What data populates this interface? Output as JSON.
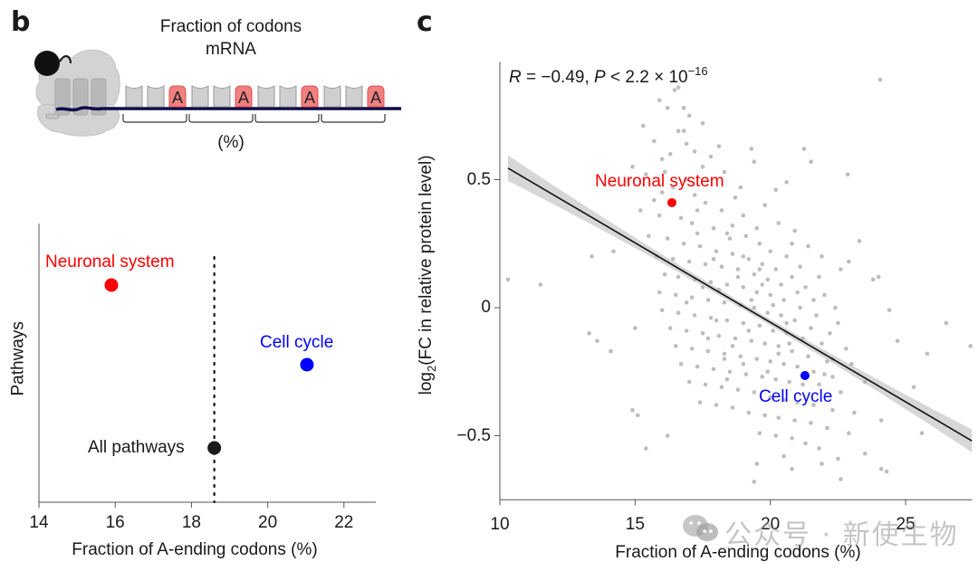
{
  "panels": {
    "b": {
      "letter": "b",
      "diagram": {
        "title_line1": "Fraction of codons",
        "title_line2": "mRNA",
        "percent_label": "(%)",
        "codon_groups": 4,
        "codon_letter": "A",
        "colors": {
          "codon_fill": "#cfcfcf",
          "a_codon_fill": "#f08080",
          "a_codon_stroke": "#e05050",
          "mrna": "#0c0c4a",
          "ribosome": "#d3d3d3",
          "peptide": "#111111"
        }
      }
    },
    "c": {
      "letter": "c"
    }
  },
  "watermark": {
    "text": "公众号 · 新使生物",
    "icon": "wechat-icon"
  },
  "chart_data": [
    {
      "type": "scatter",
      "id": "panel-b-dotplot",
      "title": "",
      "xlabel": "Fraction of A-ending codons (%)",
      "ylabel": "Pathways",
      "xlim": [
        14,
        22.9
      ],
      "xticks": [
        14,
        16,
        18,
        20,
        22
      ],
      "grid": false,
      "reference_line": {
        "x": 18.6,
        "style": "dotted"
      },
      "points": [
        {
          "label": "Neuronal system",
          "x": 15.9,
          "row": 3,
          "color": "#ff0000"
        },
        {
          "label": "Cell cycle",
          "x": 21.03,
          "row": 2,
          "color": "#0000ff"
        },
        {
          "label": "All pathways",
          "x": 18.6,
          "row": 1,
          "color": "#1a1a1a"
        }
      ]
    },
    {
      "type": "scatter",
      "id": "panel-c-scatter",
      "title": "",
      "annotation": {
        "r_label": "R",
        "r_value": "= −0.49,",
        "p_label": "P",
        "p_text": "< 2.2 × 10",
        "p_exponent": "−16"
      },
      "xlabel": "Fraction of A-ending codons (%)",
      "ylabel_main": "log",
      "ylabel_sub": "2",
      "ylabel_rest": "(FC in relative protein level)",
      "xlim": [
        10,
        27.45
      ],
      "ylim": [
        -0.75,
        0.96
      ],
      "xticks": [
        10,
        15,
        20,
        25
      ],
      "yticks": [
        0.5,
        0,
        -0.5
      ],
      "ytick_labels": [
        "0.5",
        "0",
        "−0.5"
      ],
      "grid": false,
      "regression": {
        "x0": 10.3,
        "y0": 0.545,
        "x1": 27.45,
        "y1": -0.52,
        "ci_halfwidth_ends": 0.05,
        "ci_halfwidth_center": 0.012,
        "center_x": 19.2
      },
      "highlights": [
        {
          "label": "Neuronal system",
          "x": 16.36,
          "y": 0.41,
          "color": "#ff0000"
        },
        {
          "label": "Cell cycle",
          "x": 21.28,
          "y": -0.265,
          "color": "#0000ff"
        }
      ],
      "point_color": "#bdbdbd",
      "n_points_approx": 1000,
      "points_sample": [
        [
          10.3,
          0.11
        ],
        [
          11.5,
          0.09
        ],
        [
          13.4,
          0.2
        ],
        [
          13.3,
          -0.1
        ],
        [
          13.6,
          -0.13
        ],
        [
          14.1,
          -0.17
        ],
        [
          14.2,
          0.22
        ],
        [
          14.9,
          -0.4
        ],
        [
          15.1,
          -0.42
        ],
        [
          15.4,
          -0.55
        ],
        [
          16.2,
          -0.5
        ],
        [
          15.0,
          -0.08
        ],
        [
          16.46,
          0.85
        ],
        [
          16.6,
          0.86
        ],
        [
          15.9,
          0.81
        ],
        [
          16.2,
          0.78
        ],
        [
          16.8,
          0.78
        ],
        [
          17.0,
          0.75
        ],
        [
          17.5,
          0.72
        ],
        [
          15.3,
          0.71
        ],
        [
          16.6,
          0.69
        ],
        [
          16.8,
          0.69
        ],
        [
          15.7,
          0.65
        ],
        [
          16.9,
          0.64
        ],
        [
          16.3,
          0.6
        ],
        [
          17.2,
          0.61
        ],
        [
          17.8,
          0.59
        ],
        [
          14.9,
          0.55
        ],
        [
          15.4,
          0.52
        ],
        [
          16.0,
          0.58
        ],
        [
          16.1,
          0.53
        ],
        [
          16.9,
          0.5
        ],
        [
          17.5,
          0.55
        ],
        [
          18.3,
          0.53
        ],
        [
          18.9,
          0.47
        ],
        [
          19.4,
          0.57
        ],
        [
          18.1,
          0.63
        ],
        [
          19.3,
          0.62
        ],
        [
          20.2,
          0.46
        ],
        [
          20.6,
          0.49
        ],
        [
          21.25,
          0.62
        ],
        [
          21.5,
          0.57
        ],
        [
          22.86,
          0.52
        ],
        [
          23.29,
          0.26
        ],
        [
          24.06,
          0.89
        ],
        [
          24.0,
          0.12
        ],
        [
          22.9,
          0.18
        ],
        [
          16.0,
          0.45
        ],
        [
          16.4,
          0.47
        ],
        [
          15.7,
          0.42
        ],
        [
          17.2,
          0.44
        ],
        [
          17.6,
          0.41
        ],
        [
          18.2,
          0.38
        ],
        [
          18.7,
          0.43
        ],
        [
          19.0,
          0.36
        ],
        [
          19.8,
          0.4
        ],
        [
          20.3,
          0.33
        ],
        [
          20.9,
          0.3
        ],
        [
          21.4,
          0.24
        ],
        [
          15.2,
          0.38
        ],
        [
          15.9,
          0.36
        ],
        [
          16.7,
          0.35
        ],
        [
          17.1,
          0.33
        ],
        [
          17.9,
          0.31
        ],
        [
          18.4,
          0.29
        ],
        [
          19.1,
          0.28
        ],
        [
          19.6,
          0.25
        ],
        [
          20.0,
          0.22
        ],
        [
          20.6,
          0.2
        ],
        [
          21.1,
          0.16
        ],
        [
          21.8,
          0.12
        ],
        [
          15.5,
          0.28
        ],
        [
          16.2,
          0.27
        ],
        [
          16.8,
          0.25
        ],
        [
          17.4,
          0.24
        ],
        [
          18.0,
          0.22
        ],
        [
          18.6,
          0.21
        ],
        [
          19.2,
          0.19
        ],
        [
          19.7,
          0.17
        ],
        [
          20.2,
          0.15
        ],
        [
          20.8,
          0.12
        ],
        [
          21.3,
          0.08
        ],
        [
          22.0,
          0.05
        ],
        [
          15.8,
          0.2
        ],
        [
          16.4,
          0.19
        ],
        [
          17.0,
          0.18
        ],
        [
          17.6,
          0.17
        ],
        [
          18.2,
          0.16
        ],
        [
          18.8,
          0.15
        ],
        [
          19.4,
          0.13
        ],
        [
          19.9,
          0.11
        ],
        [
          20.4,
          0.09
        ],
        [
          21.0,
          0.06
        ],
        [
          21.6,
          0.03
        ],
        [
          22.4,
          0.0
        ],
        [
          16.1,
          0.13
        ],
        [
          16.6,
          0.12
        ],
        [
          17.2,
          0.11
        ],
        [
          17.8,
          0.1
        ],
        [
          18.4,
          0.09
        ],
        [
          19.0,
          0.08
        ],
        [
          19.5,
          0.06
        ],
        [
          20.0,
          0.05
        ],
        [
          20.5,
          0.03
        ],
        [
          21.1,
          0.0
        ],
        [
          21.7,
          -0.03
        ],
        [
          22.5,
          -0.06
        ],
        [
          15.9,
          0.06
        ],
        [
          16.5,
          0.05
        ],
        [
          17.1,
          0.04
        ],
        [
          17.7,
          0.03
        ],
        [
          18.3,
          0.02
        ],
        [
          18.9,
          0.01
        ],
        [
          19.4,
          0.0
        ],
        [
          19.9,
          -0.02
        ],
        [
          20.4,
          -0.03
        ],
        [
          20.9,
          -0.05
        ],
        [
          21.5,
          -0.08
        ],
        [
          22.2,
          -0.1
        ],
        [
          16.0,
          -0.01
        ],
        [
          16.6,
          -0.02
        ],
        [
          17.2,
          -0.03
        ],
        [
          17.8,
          -0.04
        ],
        [
          18.4,
          -0.05
        ],
        [
          19.0,
          -0.06
        ],
        [
          19.6,
          -0.07
        ],
        [
          20.1,
          -0.09
        ],
        [
          20.6,
          -0.1
        ],
        [
          21.2,
          -0.12
        ],
        [
          21.9,
          -0.14
        ],
        [
          22.8,
          -0.16
        ],
        [
          16.3,
          -0.08
        ],
        [
          16.9,
          -0.09
        ],
        [
          17.5,
          -0.1
        ],
        [
          18.1,
          -0.11
        ],
        [
          18.7,
          -0.12
        ],
        [
          19.3,
          -0.13
        ],
        [
          19.8,
          -0.14
        ],
        [
          20.3,
          -0.15
        ],
        [
          20.8,
          -0.17
        ],
        [
          21.4,
          -0.19
        ],
        [
          22.1,
          -0.21
        ],
        [
          23.0,
          -0.22
        ],
        [
          16.5,
          -0.15
        ],
        [
          17.1,
          -0.16
        ],
        [
          17.7,
          -0.17
        ],
        [
          18.3,
          -0.18
        ],
        [
          18.9,
          -0.19
        ],
        [
          19.5,
          -0.2
        ],
        [
          20.0,
          -0.21
        ],
        [
          20.5,
          -0.22
        ],
        [
          21.0,
          -0.23
        ],
        [
          21.6,
          -0.25
        ],
        [
          22.3,
          -0.27
        ],
        [
          23.5,
          -0.29
        ],
        [
          16.7,
          -0.22
        ],
        [
          17.3,
          -0.23
        ],
        [
          17.9,
          -0.24
        ],
        [
          18.5,
          -0.25
        ],
        [
          19.1,
          -0.26
        ],
        [
          19.7,
          -0.27
        ],
        [
          20.2,
          -0.28
        ],
        [
          20.7,
          -0.29
        ],
        [
          21.8,
          -0.3
        ],
        [
          22.0,
          -0.26
        ],
        [
          22.6,
          -0.33
        ],
        [
          24.7,
          -0.13
        ],
        [
          17.0,
          -0.29
        ],
        [
          17.6,
          -0.3
        ],
        [
          18.2,
          -0.31
        ],
        [
          18.8,
          -0.32
        ],
        [
          19.4,
          -0.33
        ],
        [
          20.0,
          -0.35
        ],
        [
          20.5,
          -0.36
        ],
        [
          21.0,
          -0.37
        ],
        [
          21.6,
          -0.38
        ],
        [
          22.3,
          -0.4
        ],
        [
          23.1,
          -0.41
        ],
        [
          25.3,
          -0.31
        ],
        [
          17.4,
          -0.37
        ],
        [
          18.0,
          -0.38
        ],
        [
          18.6,
          -0.39
        ],
        [
          19.2,
          -0.41
        ],
        [
          19.8,
          -0.42
        ],
        [
          20.3,
          -0.43
        ],
        [
          20.9,
          -0.44
        ],
        [
          21.5,
          -0.45
        ],
        [
          22.1,
          -0.47
        ],
        [
          22.9,
          -0.49
        ],
        [
          24.1,
          -0.44
        ],
        [
          25.6,
          -0.49
        ],
        [
          19.6,
          -0.49
        ],
        [
          20.2,
          -0.5
        ],
        [
          20.8,
          -0.51
        ],
        [
          21.3,
          -0.53
        ],
        [
          21.8,
          -0.55
        ],
        [
          22.5,
          -0.59
        ],
        [
          23.5,
          -0.57
        ],
        [
          24.1,
          -0.63
        ],
        [
          24.3,
          -0.64
        ],
        [
          19.5,
          -0.61
        ],
        [
          20.5,
          -0.58
        ],
        [
          19.4,
          -0.68
        ],
        [
          22.6,
          -0.67
        ],
        [
          20.8,
          -0.63
        ],
        [
          21.9,
          -0.61
        ],
        [
          18.4,
          -0.28
        ],
        [
          19.0,
          -0.22
        ],
        [
          20.3,
          -0.18
        ],
        [
          18.0,
          -0.05
        ],
        [
          19.3,
          0.03
        ],
        [
          20.6,
          -0.06
        ],
        [
          17.5,
          0.08
        ],
        [
          18.8,
          0.12
        ],
        [
          19.7,
          0.09
        ],
        [
          18.5,
          0.27
        ],
        [
          17.3,
          0.29
        ],
        [
          18.1,
          0.07
        ],
        [
          19.2,
          -0.09
        ],
        [
          19.9,
          -0.25
        ],
        [
          18.6,
          -0.15
        ],
        [
          20.1,
          0.01
        ],
        [
          19.0,
          0.2
        ],
        [
          17.9,
          0.19
        ],
        [
          18.3,
          -0.2
        ],
        [
          20.7,
          -0.14
        ],
        [
          19.6,
          0.15
        ],
        [
          17.7,
          -0.12
        ],
        [
          21.2,
          -0.3
        ],
        [
          22.3,
          -0.2
        ],
        [
          17.3,
          0.38
        ],
        [
          18.6,
          0.32
        ],
        [
          19.5,
          0.31
        ],
        [
          16.9,
          0.02
        ],
        [
          20.8,
          0.25
        ],
        [
          21.9,
          0.2
        ],
        [
          22.6,
          0.15
        ],
        [
          23.8,
          0.11
        ],
        [
          24.4,
          -0.01
        ],
        [
          26.5,
          -0.06
        ],
        [
          27.4,
          -0.15
        ],
        [
          25.8,
          -0.18
        ]
      ]
    }
  ]
}
